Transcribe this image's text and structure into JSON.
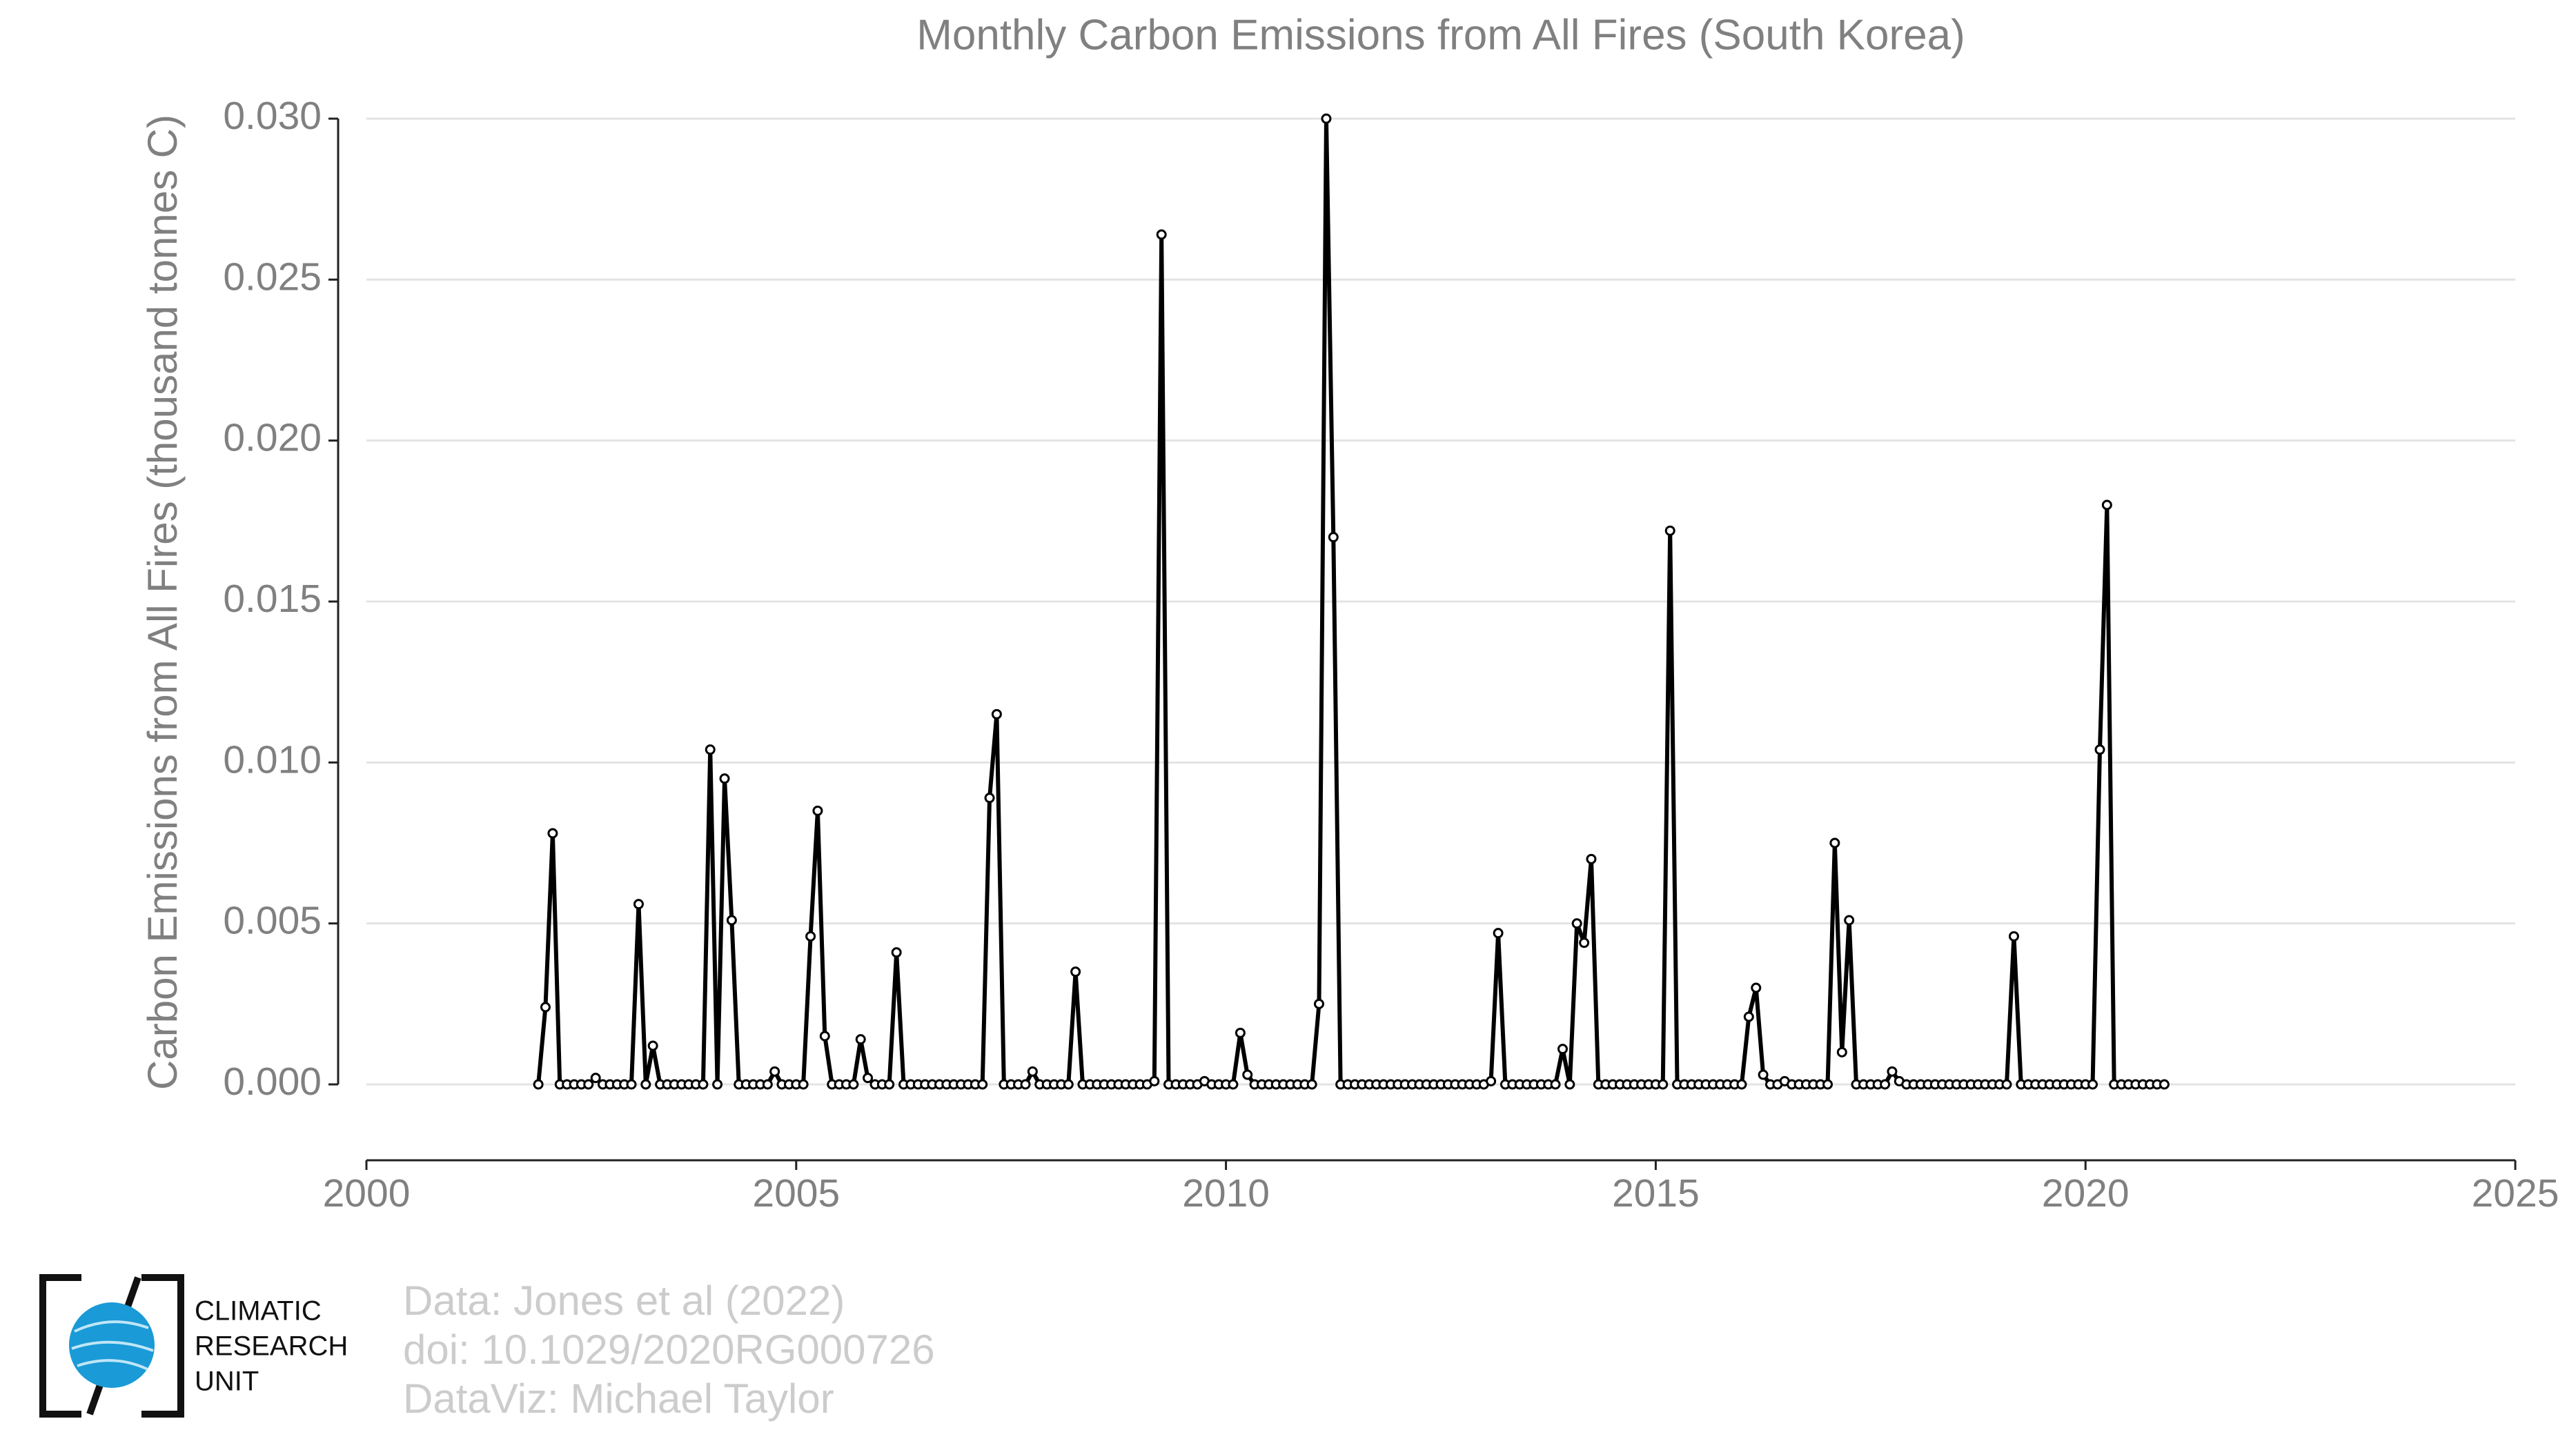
{
  "chart_data": {
    "type": "line",
    "title": "Monthly Carbon Emissions from All Fires (South Korea)",
    "y_label": "Carbon Emissions from All Fires (thousand tonnes C)",
    "color": "#000000",
    "grid": true,
    "xlim": [
      2000,
      2025
    ],
    "xticks": [
      2000,
      2005,
      2010,
      2015,
      2020,
      2025
    ],
    "ylim": [
      0,
      0.03
    ],
    "yticks": [
      {
        "value": 0,
        "label": "0.000"
      },
      {
        "value": 0.005,
        "label": "0.005"
      },
      {
        "value": 0.01,
        "label": "0.010"
      },
      {
        "value": 0.015,
        "label": "0.015"
      },
      {
        "value": 0.02,
        "label": "0.020"
      },
      {
        "value": 0.025,
        "label": "0.025"
      },
      {
        "value": 0.03,
        "label": "0.030"
      }
    ],
    "x": [
      2002,
      2002.083,
      2002.167,
      2002.25,
      2002.333,
      2002.417,
      2002.5,
      2002.583,
      2002.667,
      2002.75,
      2002.833,
      2002.917,
      2003,
      2003.083,
      2003.167,
      2003.25,
      2003.333,
      2003.417,
      2003.5,
      2003.583,
      2003.667,
      2003.75,
      2003.833,
      2003.917,
      2004,
      2004.083,
      2004.167,
      2004.25,
      2004.333,
      2004.417,
      2004.5,
      2004.583,
      2004.667,
      2004.75,
      2004.833,
      2004.917,
      2005,
      2005.083,
      2005.167,
      2005.25,
      2005.333,
      2005.417,
      2005.5,
      2005.583,
      2005.667,
      2005.75,
      2005.833,
      2005.917,
      2006,
      2006.083,
      2006.167,
      2006.25,
      2006.333,
      2006.417,
      2006.5,
      2006.583,
      2006.667,
      2006.75,
      2006.833,
      2006.917,
      2007,
      2007.083,
      2007.167,
      2007.25,
      2007.333,
      2007.417,
      2007.5,
      2007.583,
      2007.667,
      2007.75,
      2007.833,
      2007.917,
      2008,
      2008.083,
      2008.167,
      2008.25,
      2008.333,
      2008.417,
      2008.5,
      2008.583,
      2008.667,
      2008.75,
      2008.833,
      2008.917,
      2009,
      2009.083,
      2009.167,
      2009.25,
      2009.333,
      2009.417,
      2009.5,
      2009.583,
      2009.667,
      2009.75,
      2009.833,
      2009.917,
      2010,
      2010.083,
      2010.167,
      2010.25,
      2010.333,
      2010.417,
      2010.5,
      2010.583,
      2010.667,
      2010.75,
      2010.833,
      2010.917,
      2011,
      2011.083,
      2011.167,
      2011.25,
      2011.333,
      2011.417,
      2011.5,
      2011.583,
      2011.667,
      2011.75,
      2011.833,
      2011.917,
      2012,
      2012.083,
      2012.167,
      2012.25,
      2012.333,
      2012.417,
      2012.5,
      2012.583,
      2012.667,
      2012.75,
      2012.833,
      2012.917,
      2013,
      2013.083,
      2013.167,
      2013.25,
      2013.333,
      2013.417,
      2013.5,
      2013.583,
      2013.667,
      2013.75,
      2013.833,
      2013.917,
      2014,
      2014.083,
      2014.167,
      2014.25,
      2014.333,
      2014.417,
      2014.5,
      2014.583,
      2014.667,
      2014.75,
      2014.833,
      2014.917,
      2015,
      2015.083,
      2015.167,
      2015.25,
      2015.333,
      2015.417,
      2015.5,
      2015.583,
      2015.667,
      2015.75,
      2015.833,
      2015.917,
      2016,
      2016.083,
      2016.167,
      2016.25,
      2016.333,
      2016.417,
      2016.5,
      2016.583,
      2016.667,
      2016.75,
      2016.833,
      2016.917,
      2017,
      2017.083,
      2017.167,
      2017.25,
      2017.333,
      2017.417,
      2017.5,
      2017.583,
      2017.667,
      2017.75,
      2017.833,
      2017.917,
      2018,
      2018.083,
      2018.167,
      2018.25,
      2018.333,
      2018.417,
      2018.5,
      2018.583,
      2018.667,
      2018.75,
      2018.833,
      2018.917,
      2019,
      2019.083,
      2019.167,
      2019.25,
      2019.333,
      2019.417,
      2019.5,
      2019.583,
      2019.667,
      2019.75,
      2019.833,
      2019.917,
      2020,
      2020.083,
      2020.167,
      2020.25,
      2020.333,
      2020.417,
      2020.5,
      2020.583,
      2020.667,
      2020.75,
      2020.833,
      2020.917
    ],
    "values": [
      0,
      0.0024,
      0.0078,
      0,
      0,
      0,
      0,
      0,
      0.0002,
      0,
      0,
      0,
      0,
      0,
      0.0056,
      0,
      0.0012,
      0,
      0,
      0,
      0,
      0,
      0,
      0,
      0.0104,
      0,
      0.0095,
      0.0051,
      0,
      0,
      0,
      0,
      0,
      0.0004,
      0,
      0,
      0,
      0,
      0.0046,
      0.0085,
      0.0015,
      0,
      0,
      0,
      0,
      0.0014,
      0.0002,
      0,
      0,
      0,
      0.0041,
      0,
      0,
      0,
      0,
      0,
      0,
      0,
      0,
      0,
      0,
      0,
      0,
      0.0089,
      0.0115,
      0,
      0,
      0,
      0,
      0.0004,
      0,
      0,
      0,
      0,
      0,
      0.0035,
      0,
      0,
      0,
      0,
      0,
      0,
      0,
      0,
      0,
      0,
      0.0001,
      0.0264,
      0,
      0,
      0,
      0,
      0,
      0.0001,
      0,
      0,
      0,
      0,
      0.0016,
      0.0003,
      0,
      0,
      0,
      0,
      0,
      0,
      0,
      0,
      0,
      0.0025,
      0.03,
      0.017,
      0,
      0,
      0,
      0,
      0,
      0,
      0,
      0,
      0,
      0,
      0,
      0,
      0,
      0,
      0,
      0,
      0,
      0,
      0,
      0,
      0,
      0.0001,
      0.0047,
      0,
      0,
      0,
      0,
      0,
      0,
      0,
      0,
      0.0011,
      0,
      0.005,
      0.0044,
      0.007,
      0,
      0,
      0,
      0,
      0,
      0,
      0,
      0,
      0,
      0,
      0.0172,
      0,
      0,
      0,
      0,
      0,
      0,
      0,
      0,
      0,
      0,
      0.0021,
      0.003,
      0.0003,
      0,
      0,
      0.0001,
      0,
      0,
      0,
      0,
      0,
      0,
      0.0075,
      0.001,
      0.0051,
      0,
      0,
      0,
      0,
      0,
      0.0004,
      0.0001,
      0,
      0,
      0,
      0,
      0,
      0,
      0,
      0,
      0,
      0,
      0,
      0,
      0,
      0,
      0,
      0.0046,
      0,
      0,
      0,
      0,
      0,
      0,
      0,
      0,
      0,
      0,
      0,
      0.0104,
      0.018,
      0,
      0,
      0,
      0,
      0,
      0,
      0,
      0
    ],
    "credits": [
      "Data: Jones et al (2022)",
      "doi: 10.1029/2020RG000726",
      "DataViz: Michael Taylor"
    ],
    "logo_text": [
      "CLIMATIC",
      "RESEARCH",
      "UNIT"
    ]
  }
}
